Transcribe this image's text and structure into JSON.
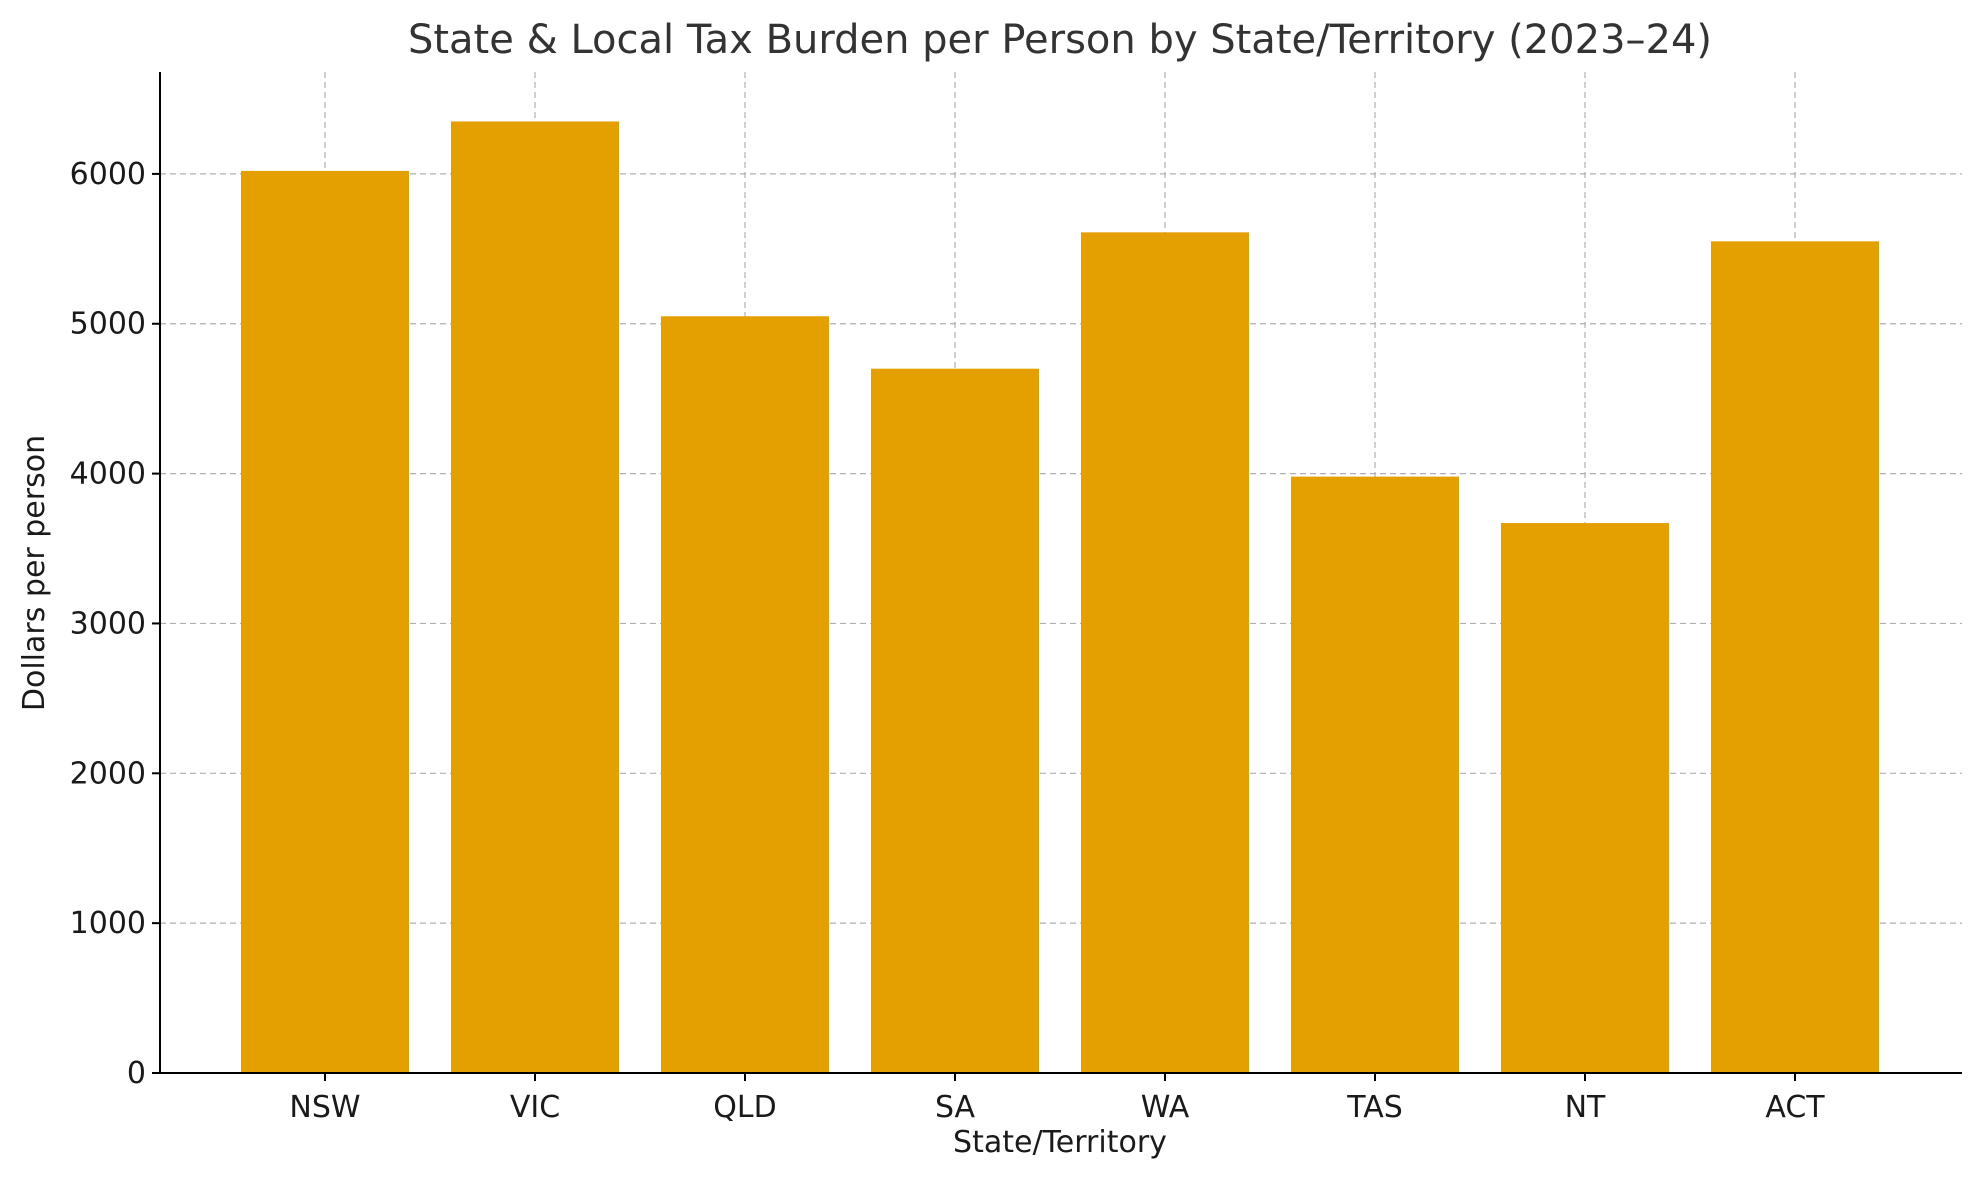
{
  "chart_data": {
    "type": "bar",
    "title": "State & Local Tax Burden per Person by State/Territory (2023–24)",
    "xlabel": "State/Territory",
    "ylabel": "Dollars per person",
    "categories": [
      "NSW",
      "VIC",
      "QLD",
      "SA",
      "WA",
      "TAS",
      "NT",
      "ACT"
    ],
    "values": [
      6020,
      6350,
      5050,
      4700,
      5610,
      3980,
      3670,
      5550
    ],
    "ylim": [
      0,
      6680
    ],
    "yticks": [
      0,
      1000,
      2000,
      3000,
      4000,
      5000,
      6000
    ],
    "grid": true,
    "colors": {
      "bar": "#E3A000",
      "grid": "#b0b0b0",
      "axis": "#000000"
    }
  }
}
